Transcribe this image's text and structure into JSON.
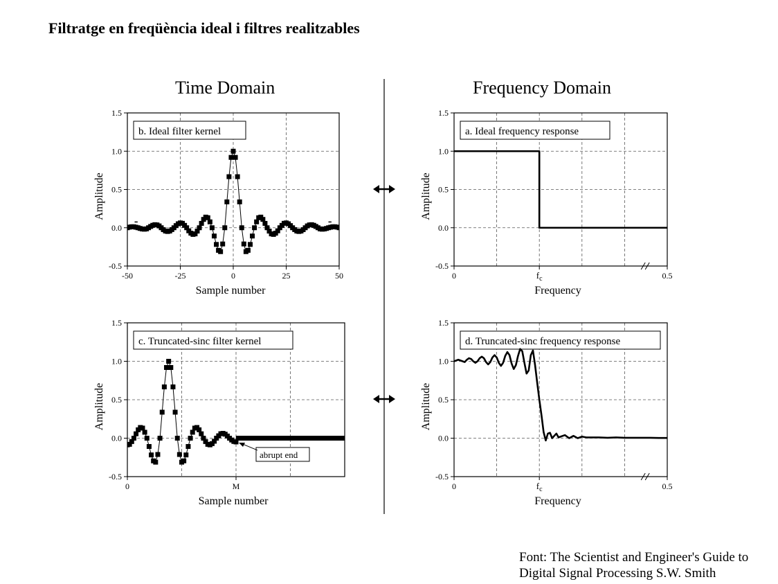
{
  "page": {
    "title": "Filtratge en freqüència ideal i filtres realitzables",
    "time_heading": "Time Domain",
    "freq_heading": "Frequency Domain",
    "source_line1": "Font: The Scientist and Engineer's Guide to",
    "source_line2": "Digital Signal Processing S.W. Smith",
    "colors": {
      "ink": "#000000",
      "background": "#ffffff",
      "grid": "#555555"
    },
    "icons": [
      "double-arrow-icon"
    ]
  },
  "chart_data": [
    {
      "id": "b",
      "type": "scatter",
      "label": "b. Ideal filter kernel",
      "xlabel": "Sample number",
      "ylabel": "Amplitude",
      "xlim": [
        -50,
        50
      ],
      "ylim": [
        -0.5,
        1.5
      ],
      "xticks": [
        -50,
        -25,
        0,
        25,
        50
      ],
      "xtick_labels": [
        "-50",
        "-25",
        "0",
        "25",
        "50"
      ],
      "yticks": [
        -0.5,
        0.0,
        0.5,
        1.0,
        1.5
      ],
      "ytick_labels": [
        "-0.5",
        "0.0",
        "0.5",
        "1.0",
        "1.5"
      ],
      "grid": true,
      "connected": true,
      "ellipsis": "•••",
      "x": [
        -50,
        -49,
        -48,
        -47,
        -46,
        -45,
        -44,
        -43,
        -42,
        -41,
        -40,
        -39,
        -38,
        -37,
        -36,
        -35,
        -34,
        -33,
        -32,
        -31,
        -30,
        -29,
        -28,
        -27,
        -26,
        -25,
        -24,
        -23,
        -22,
        -21,
        -20,
        -19,
        -18,
        -17,
        -16,
        -15,
        -14,
        -13,
        -12,
        -11,
        -10,
        -9,
        -8,
        -7,
        -6,
        -5,
        -4,
        -3,
        -2,
        -1,
        0,
        1,
        2,
        3,
        4,
        5,
        6,
        7,
        8,
        9,
        10,
        11,
        12,
        13,
        14,
        15,
        16,
        17,
        18,
        19,
        20,
        21,
        22,
        23,
        24,
        25,
        26,
        27,
        28,
        29,
        30,
        31,
        32,
        33,
        34,
        35,
        36,
        37,
        38,
        39,
        40,
        41,
        42,
        43,
        44,
        45,
        46,
        47,
        48,
        49,
        50
      ],
      "y": [
        0.0,
        0.008,
        0.013,
        0.013,
        0.007,
        0.0,
        -0.009,
        -0.016,
        -0.019,
        -0.015,
        0.0,
        0.017,
        0.032,
        0.04,
        0.037,
        0.024,
        0.0,
        -0.025,
        -0.043,
        -0.049,
        -0.043,
        -0.024,
        0.0,
        0.028,
        0.052,
        0.063,
        0.058,
        0.031,
        0.0,
        -0.04,
        -0.071,
        -0.087,
        -0.08,
        -0.044,
        0.0,
        0.057,
        0.109,
        0.139,
        0.131,
        0.077,
        0.0,
        -0.108,
        -0.218,
        -0.295,
        -0.312,
        -0.212,
        0.0,
        0.338,
        0.667,
        0.919,
        1.0,
        0.919,
        0.667,
        0.338,
        0.0,
        -0.212,
        -0.312,
        -0.295,
        -0.218,
        -0.108,
        0.0,
        0.077,
        0.131,
        0.139,
        0.109,
        0.057,
        0.0,
        -0.044,
        -0.08,
        -0.087,
        -0.071,
        -0.04,
        0.0,
        0.031,
        0.058,
        0.063,
        0.052,
        0.028,
        0.0,
        -0.024,
        -0.043,
        -0.049,
        -0.043,
        -0.025,
        0.0,
        0.024,
        0.037,
        0.04,
        0.032,
        0.017,
        0.0,
        -0.015,
        -0.019,
        -0.016,
        -0.009,
        0.0,
        0.007,
        0.013,
        0.013,
        0.008,
        0.0
      ]
    },
    {
      "id": "a",
      "type": "line",
      "label": "a. Ideal frequency response",
      "xlabel": "Frequency",
      "ylabel": "Amplitude",
      "xlim": [
        0,
        0.5
      ],
      "ylim": [
        -0.5,
        1.5
      ],
      "xticks": [
        0,
        0.2,
        0.5
      ],
      "xtick_labels": [
        "0",
        "fc",
        "0.5"
      ],
      "yticks": [
        -0.5,
        0.0,
        0.5,
        1.0,
        1.5
      ],
      "ytick_labels": [
        "-0.5",
        "0.0",
        "0.5",
        "1.0",
        "1.5"
      ],
      "grid": true,
      "axis_break": true,
      "x": [
        0,
        0.2,
        0.2,
        0.5
      ],
      "y": [
        1.0,
        1.0,
        0.0,
        0.0
      ]
    },
    {
      "id": "c",
      "type": "scatter",
      "label": "c. Truncated-sinc filter kernel",
      "xlabel": "Sample number",
      "ylabel": "Amplitude",
      "xlim": [
        0,
        100
      ],
      "ylim": [
        -0.5,
        1.5
      ],
      "xticks": [
        0,
        50
      ],
      "xtick_labels": [
        "0",
        "M"
      ],
      "yticks": [
        -0.5,
        0.0,
        0.5,
        1.0,
        1.5
      ],
      "ytick_labels": [
        "-0.5",
        "0.0",
        "0.5",
        "1.0",
        "1.5"
      ],
      "grid": true,
      "connected": true,
      "annotation": "abrupt end",
      "zero_tail_x": [
        50,
        100
      ],
      "x": [
        0,
        1,
        2,
        3,
        4,
        5,
        6,
        7,
        8,
        9,
        10,
        11,
        12,
        13,
        14,
        15,
        16,
        17,
        18,
        19,
        20,
        21,
        22,
        23,
        24,
        25,
        26,
        27,
        28,
        29,
        30,
        31,
        32,
        33,
        34,
        35,
        36,
        37,
        38,
        39,
        40,
        41,
        42,
        43,
        44,
        45,
        46,
        47,
        48,
        49,
        50
      ],
      "y": [
        -0.087,
        -0.08,
        -0.044,
        0.0,
        0.057,
        0.109,
        0.139,
        0.131,
        0.077,
        0.0,
        -0.108,
        -0.218,
        -0.295,
        -0.312,
        -0.212,
        0.0,
        0.338,
        0.667,
        0.919,
        1.0,
        0.919,
        0.667,
        0.338,
        0.0,
        -0.212,
        -0.312,
        -0.295,
        -0.218,
        -0.108,
        0.0,
        0.077,
        0.131,
        0.139,
        0.109,
        0.057,
        0.0,
        -0.044,
        -0.08,
        -0.087,
        -0.071,
        -0.04,
        0.0,
        0.031,
        0.058,
        0.063,
        0.052,
        0.028,
        0.0,
        -0.024,
        -0.043,
        -0.049
      ]
    },
    {
      "id": "d",
      "type": "line",
      "label": "d. Truncated-sinc frequency response",
      "xlabel": "Frequency",
      "ylabel": "Amplitude",
      "xlim": [
        0,
        0.5
      ],
      "ylim": [
        -0.5,
        1.5
      ],
      "xticks": [
        0,
        0.2,
        0.5
      ],
      "xtick_labels": [
        "0",
        "fc",
        "0.5"
      ],
      "yticks": [
        -0.5,
        0.0,
        0.5,
        1.0,
        1.5
      ],
      "ytick_labels": [
        "-0.5",
        "0.0",
        "0.5",
        "1.0",
        "1.5"
      ],
      "grid": true,
      "axis_break": true,
      "x": [
        0.0,
        0.005,
        0.01,
        0.015,
        0.02,
        0.025,
        0.03,
        0.035,
        0.04,
        0.045,
        0.05,
        0.055,
        0.06,
        0.065,
        0.07,
        0.075,
        0.08,
        0.085,
        0.09,
        0.095,
        0.1,
        0.105,
        0.11,
        0.115,
        0.12,
        0.125,
        0.13,
        0.135,
        0.14,
        0.145,
        0.15,
        0.155,
        0.16,
        0.165,
        0.17,
        0.175,
        0.18,
        0.185,
        0.19,
        0.195,
        0.2,
        0.205,
        0.21,
        0.215,
        0.22,
        0.225,
        0.23,
        0.235,
        0.24,
        0.245,
        0.25,
        0.26,
        0.27,
        0.28,
        0.29,
        0.3,
        0.31,
        0.32,
        0.34,
        0.36,
        0.38,
        0.4,
        0.42,
        0.44,
        0.46,
        0.48,
        0.5
      ],
      "y": [
        1.0,
        1.01,
        1.02,
        1.01,
        1.0,
        0.99,
        1.02,
        1.04,
        1.03,
        1.0,
        0.98,
        1.0,
        1.04,
        1.06,
        1.04,
        0.99,
        0.96,
        0.99,
        1.05,
        1.08,
        1.05,
        0.98,
        0.94,
        0.98,
        1.07,
        1.12,
        1.08,
        0.97,
        0.9,
        0.95,
        1.07,
        1.16,
        1.13,
        0.98,
        0.84,
        0.88,
        1.08,
        1.14,
        0.95,
        0.72,
        0.5,
        0.3,
        0.08,
        -0.03,
        0.06,
        0.07,
        0.0,
        0.03,
        0.06,
        0.01,
        0.02,
        0.04,
        0.0,
        0.03,
        0.0,
        0.02,
        0.01,
        0.01,
        0.01,
        0.005,
        0.01,
        0.005,
        0.005,
        0.005,
        0.005,
        0.003,
        0.003
      ]
    }
  ]
}
